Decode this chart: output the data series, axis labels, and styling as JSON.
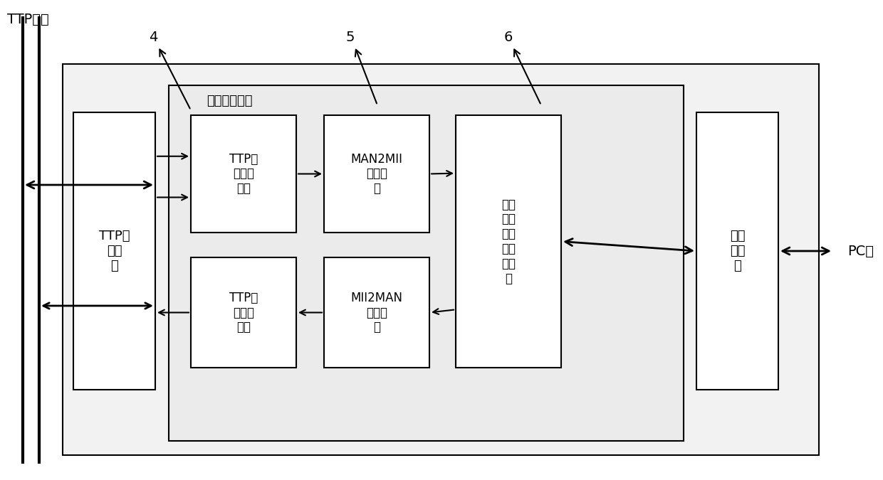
{
  "bg_color": "#ffffff",
  "box_color": "#ffffff",
  "box_edge_color": "#000000",
  "title_text": "TTP总线",
  "label4": "4",
  "label5": "5",
  "label6": "6",
  "ttp_interface_label": "TTP总\n线接\n口",
  "ethernet_interface_label": "以太\n网接\n口",
  "data_ctrl_unit_label": "数据控制单元",
  "box1_label": "TTP总\n线数据\n捕获",
  "box2_label": "MAN2MII\n编码转\n换",
  "box3_label": "数据\n缓冲\n接收\n与发\n送控\n制",
  "box4_label": "TTP总\n线数据\n发送",
  "box5_label": "MII2MAN\n编码转\n换",
  "pc_label": "PC机"
}
